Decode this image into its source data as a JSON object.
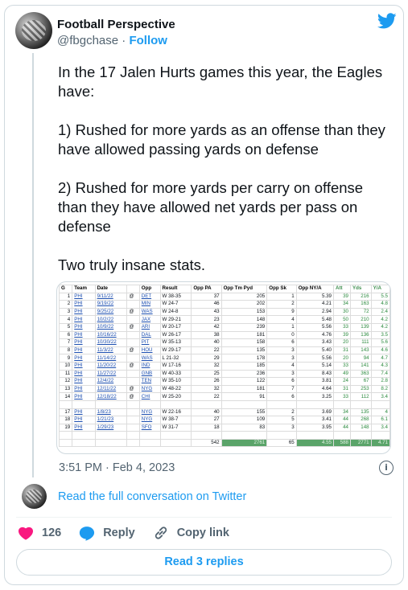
{
  "author": {
    "name": "Football Perspective",
    "handle": "@fbgchase",
    "separator": "·",
    "follow_label": "Follow"
  },
  "tweet": {
    "text": "In the 17 Jalen Hurts games this year, the Eagles have:\n\n1) Rushed for more yards as an offense than they have allowed passing yards on defense\n\n2) Rushed for more yards per carry on offense than they have allowed net yards per pass on defense\n\nTwo truly insane stats.",
    "timestamp": "3:51 PM · Feb 4, 2023"
  },
  "spreadsheet": {
    "headers": [
      "G",
      "Team",
      "Date",
      "",
      "Opp",
      "Result",
      "Opp PA",
      "Opp Tm Pyd",
      "Opp Sk",
      "Opp NY/A",
      "Att",
      "Yds",
      "Y/A"
    ],
    "rows": [
      [
        "1",
        "PHI",
        "9/11/22",
        "@",
        "DET",
        "W 38-35",
        "37",
        "205",
        "1",
        "5.39",
        "39",
        "216",
        "5.5"
      ],
      [
        "2",
        "PHI",
        "9/19/22",
        "",
        "MIN",
        "W 24-7",
        "46",
        "202",
        "2",
        "4.21",
        "34",
        "163",
        "4.8"
      ],
      [
        "3",
        "PHI",
        "9/25/22",
        "@",
        "WAS",
        "W 24-8",
        "43",
        "153",
        "9",
        "2.94",
        "30",
        "72",
        "2.4"
      ],
      [
        "4",
        "PHI",
        "10/2/22",
        "",
        "JAX",
        "W 29-21",
        "23",
        "148",
        "4",
        "5.48",
        "50",
        "210",
        "4.2"
      ],
      [
        "5",
        "PHI",
        "10/9/22",
        "@",
        "ARI",
        "W 20-17",
        "42",
        "239",
        "1",
        "5.56",
        "33",
        "139",
        "4.2"
      ],
      [
        "6",
        "PHI",
        "10/16/22",
        "",
        "DAL",
        "W 26-17",
        "38",
        "181",
        "0",
        "4.76",
        "39",
        "136",
        "3.5"
      ],
      [
        "7",
        "PHI",
        "10/30/22",
        "",
        "PIT",
        "W 35-13",
        "40",
        "158",
        "6",
        "3.43",
        "20",
        "111",
        "5.6"
      ],
      [
        "8",
        "PHI",
        "11/3/22",
        "@",
        "HOU",
        "W 29-17",
        "22",
        "135",
        "3",
        "5.40",
        "31",
        "143",
        "4.6"
      ],
      [
        "9",
        "PHI",
        "11/14/22",
        "",
        "WAS",
        "L 21-32",
        "29",
        "178",
        "3",
        "5.56",
        "20",
        "94",
        "4.7"
      ],
      [
        "10",
        "PHI",
        "11/20/22",
        "@",
        "IND",
        "W 17-16",
        "32",
        "185",
        "4",
        "5.14",
        "33",
        "141",
        "4.3"
      ],
      [
        "11",
        "PHI",
        "11/27/22",
        "",
        "GNB",
        "W 40-33",
        "25",
        "236",
        "3",
        "8.43",
        "49",
        "363",
        "7.4"
      ],
      [
        "12",
        "PHI",
        "12/4/22",
        "",
        "TEN",
        "W 35-10",
        "26",
        "122",
        "6",
        "3.81",
        "24",
        "67",
        "2.8"
      ],
      [
        "13",
        "PHI",
        "12/11/22",
        "@",
        "NYG",
        "W 48-22",
        "32",
        "181",
        "7",
        "4.64",
        "31",
        "253",
        "8.2"
      ],
      [
        "14",
        "PHI",
        "12/18/22",
        "@",
        "CHI",
        "W 25-20",
        "22",
        "91",
        "6",
        "3.25",
        "33",
        "112",
        "3.4"
      ]
    ],
    "rows_late": [
      [
        "17",
        "PHI",
        "1/8/23",
        "",
        "NYG",
        "W 22-16",
        "40",
        "155",
        "2",
        "3.69",
        "34",
        "135",
        "4"
      ],
      [
        "18",
        "PHI",
        "1/21/23",
        "",
        "NYG",
        "W 38-7",
        "27",
        "109",
        "5",
        "3.41",
        "44",
        "268",
        "6.1"
      ],
      [
        "19",
        "PHI",
        "1/29/23",
        "",
        "SFO",
        "W 31-7",
        "18",
        "83",
        "3",
        "3.95",
        "44",
        "148",
        "3.4"
      ]
    ],
    "totals": [
      "",
      "",
      "",
      "",
      "",
      "",
      "542",
      "2761",
      "65",
      "4.55",
      "588",
      "2771",
      "4.71"
    ]
  },
  "footer": {
    "read_conversation": "Read the full conversation on Twitter",
    "likes": "126",
    "reply_label": "Reply",
    "copy_link_label": "Copy link",
    "read_replies_label": "Read 3 replies"
  },
  "colors": {
    "accent": "#1d9bf0",
    "like": "#f91880",
    "muted": "#536471",
    "sheet_highlight": "#5aa469"
  },
  "icons": [
    "twitter-bird-icon",
    "info-icon",
    "heart-icon",
    "reply-bubble-icon",
    "link-icon"
  ]
}
